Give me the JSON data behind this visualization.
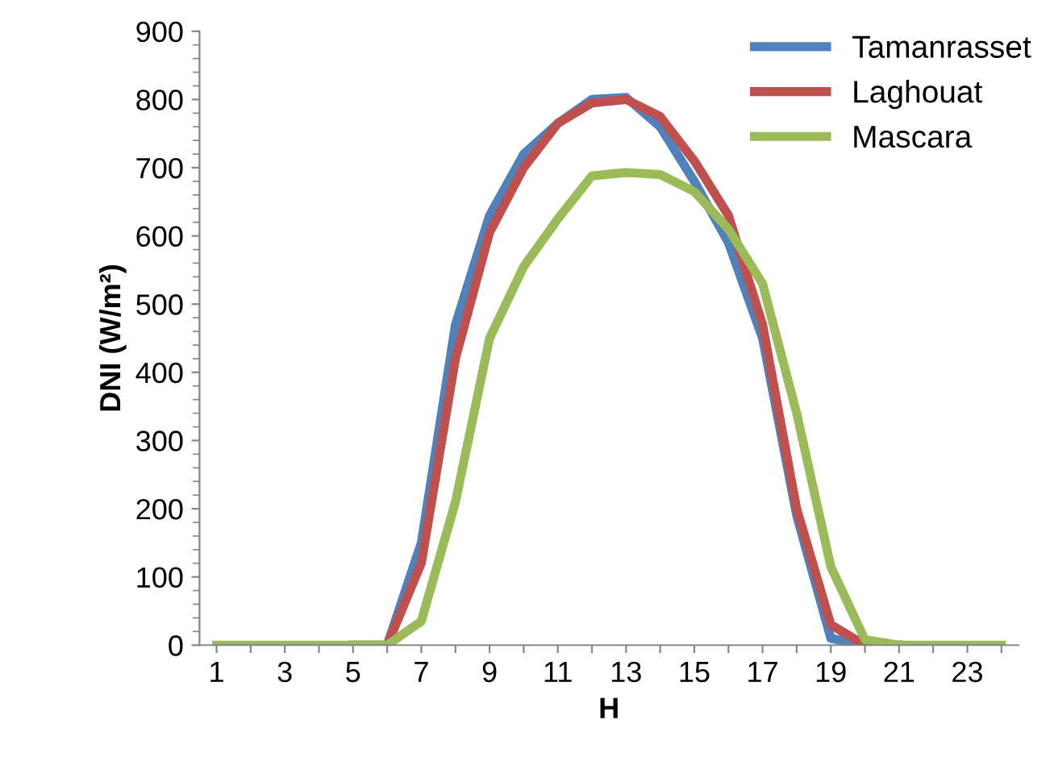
{
  "chart_data": {
    "type": "line",
    "xlabel": "H",
    "ylabel": "DNI (W/m²)",
    "categories": [
      "1",
      null,
      "3",
      null,
      "5",
      null,
      "7",
      null,
      "9",
      null,
      "11",
      null,
      "13",
      null,
      "15",
      null,
      "17",
      null,
      "19",
      null,
      "21",
      null,
      "23",
      null
    ],
    "series": [
      {
        "name": "Tamanrasset",
        "color": "#4f81bd",
        "values": [
          null,
          null,
          null,
          null,
          0,
          0,
          150,
          470,
          630,
          720,
          765,
          800,
          803,
          760,
          680,
          590,
          450,
          190,
          10,
          0,
          0,
          null,
          null,
          null
        ]
      },
      {
        "name": "Laghouat",
        "color": "#c0504d",
        "values": [
          null,
          null,
          null,
          null,
          0,
          0,
          120,
          420,
          605,
          700,
          765,
          795,
          800,
          775,
          710,
          630,
          470,
          200,
          30,
          0,
          0,
          null,
          null,
          null
        ]
      },
      {
        "name": "Mascara",
        "color": "#9bbb59",
        "values": [
          0,
          0,
          0,
          0,
          0,
          0,
          35,
          210,
          450,
          555,
          625,
          688,
          693,
          690,
          665,
          610,
          530,
          340,
          115,
          8,
          0,
          0,
          0,
          0
        ]
      }
    ],
    "ylim": [
      0,
      900
    ],
    "yticks": [
      0,
      100,
      200,
      300,
      400,
      500,
      600,
      700,
      800,
      900
    ],
    "legend": "top right",
    "grid": false,
    "marker": "none",
    "line_style": "solid"
  }
}
